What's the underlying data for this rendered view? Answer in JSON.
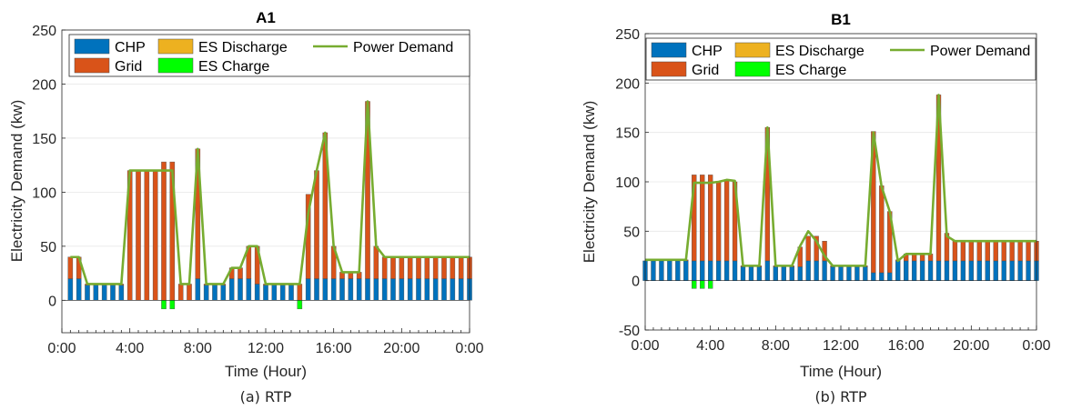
{
  "colors": {
    "chp": "#0072BD",
    "grid": "#D95319",
    "es_discharge": "#EDB120",
    "es_charge": "#00FF00",
    "power_demand": "#77AC30"
  },
  "chart_data": [
    {
      "type": "bar",
      "title": "A1",
      "caption": "(a) RTP",
      "xlabel": "Time (Hour)",
      "ylabel": "Electricity Demand (kw)",
      "ylim": [
        -30,
        250
      ],
      "yticks": [
        0,
        50,
        100,
        150,
        200,
        250
      ],
      "ytick_labels": [
        "0",
        "50",
        "100",
        "150",
        "200",
        "250"
      ],
      "xticks": [
        0,
        4,
        8,
        12,
        16,
        20,
        24
      ],
      "xtick_labels": [
        "0:00",
        "4:00",
        "8:00",
        "12:00",
        "16:00",
        "20:00",
        "0:00"
      ],
      "grid": true,
      "legend_position": "top",
      "legend": [
        "CHP",
        "Grid",
        "ES Discharge",
        "ES Charge",
        "Power Demand"
      ],
      "x": [
        0.5,
        1,
        1.5,
        2,
        2.5,
        3,
        3.5,
        4,
        4.5,
        5,
        5.5,
        6,
        6.5,
        7,
        7.5,
        8,
        8.5,
        9,
        9.5,
        10,
        10.5,
        11,
        11.5,
        12,
        12.5,
        13,
        13.5,
        14,
        14.5,
        15,
        15.5,
        16,
        16.5,
        17,
        17.5,
        18,
        18.5,
        19,
        19.5,
        20,
        20.5,
        21,
        21.5,
        22,
        22.5,
        23,
        23.5,
        24
      ],
      "series": [
        {
          "name": "CHP",
          "values": [
            20,
            20,
            14,
            14,
            14,
            14,
            14,
            0,
            0,
            0,
            0,
            0,
            0,
            0,
            0,
            20,
            14,
            14,
            14,
            20,
            20,
            20,
            15,
            14,
            14,
            14,
            14,
            0,
            20,
            20,
            20,
            20,
            20,
            20,
            20,
            20,
            20,
            20,
            20,
            20,
            20,
            20,
            20,
            20,
            20,
            20,
            20,
            20
          ]
        },
        {
          "name": "Grid",
          "values": [
            20,
            20,
            1,
            1,
            1,
            1,
            1,
            120,
            120,
            120,
            120,
            128,
            128,
            15,
            15,
            120,
            1,
            1,
            1,
            10,
            10,
            30,
            35,
            1,
            1,
            1,
            1,
            15,
            78,
            100,
            135,
            30,
            6,
            6,
            6,
            164,
            30,
            20,
            20,
            20,
            20,
            20,
            20,
            20,
            20,
            20,
            20,
            20
          ]
        },
        {
          "name": "ES Discharge",
          "values": [
            0,
            0,
            0,
            0,
            0,
            0,
            0,
            0,
            0,
            0,
            0,
            0,
            0,
            0,
            0,
            0,
            0,
            0,
            0,
            0,
            0,
            0,
            0,
            0,
            0,
            0,
            0,
            0,
            0,
            0,
            0,
            0,
            0,
            0,
            0,
            0,
            0,
            0,
            0,
            0,
            0,
            0,
            0,
            0,
            0,
            0,
            0,
            0
          ]
        },
        {
          "name": "ES Charge",
          "values": [
            0,
            0,
            0,
            0,
            0,
            0,
            0,
            0,
            0,
            0,
            0,
            -8,
            -8,
            0,
            0,
            0,
            0,
            0,
            0,
            0,
            0,
            0,
            0,
            0,
            0,
            0,
            0,
            -8,
            0,
            0,
            0,
            0,
            0,
            0,
            0,
            0,
            0,
            0,
            0,
            0,
            0,
            0,
            0,
            0,
            0,
            0,
            0,
            0
          ]
        }
      ],
      "demand": {
        "name": "Power Demand",
        "x": [
          0.5,
          1,
          1.5,
          2,
          2.5,
          3,
          3.5,
          4,
          4.5,
          5,
          5.5,
          6,
          6.5,
          7,
          7.5,
          8,
          8.5,
          9,
          9.5,
          10,
          10.5,
          11,
          11.5,
          12,
          12.5,
          13,
          13.5,
          14,
          14.5,
          15,
          15.5,
          16,
          16.5,
          17,
          17.5,
          18,
          18.5,
          19,
          19.5,
          20,
          20.5,
          21,
          21.5,
          22,
          22.5,
          23,
          23.5,
          24
        ],
        "values": [
          40,
          40,
          15,
          15,
          15,
          15,
          15,
          120,
          120,
          120,
          120,
          120,
          120,
          15,
          15,
          140,
          15,
          15,
          15,
          30,
          30,
          50,
          50,
          15,
          15,
          15,
          15,
          15,
          80,
          120,
          155,
          50,
          26,
          26,
          26,
          184,
          50,
          40,
          40,
          40,
          40,
          40,
          40,
          40,
          40,
          40,
          40,
          40
        ]
      }
    },
    {
      "type": "bar",
      "title": "B1",
      "caption": "(b) RTP",
      "xlabel": "Time (Hour)",
      "ylabel": "Electricity Demand (kw)",
      "ylim": [
        -50,
        250
      ],
      "yticks": [
        -50,
        0,
        50,
        100,
        150,
        200,
        250
      ],
      "ytick_labels": [
        "-50",
        "0",
        "50",
        "100",
        "150",
        "200",
        "250"
      ],
      "xticks": [
        0,
        4,
        8,
        12,
        16,
        20,
        24
      ],
      "xtick_labels": [
        "0:00",
        "4:00",
        "8:00",
        "12:00",
        "16:00",
        "20:00",
        "0:00"
      ],
      "grid": true,
      "legend_position": "top",
      "legend": [
        "CHP",
        "Grid",
        "ES Discharge",
        "ES Charge",
        "Power Demand"
      ],
      "x": [
        0,
        0.5,
        1,
        1.5,
        2,
        2.5,
        3,
        3.5,
        4,
        4.5,
        5,
        5.5,
        6,
        6.5,
        7,
        7.5,
        8,
        8.5,
        9,
        9.5,
        10,
        10.5,
        11,
        11.5,
        12,
        12.5,
        13,
        13.5,
        14,
        14.5,
        15,
        15.5,
        16,
        16.5,
        17,
        17.5,
        18,
        18.5,
        19,
        19.5,
        20,
        20.5,
        21,
        21.5,
        22,
        22.5,
        23,
        23.5,
        24
      ],
      "series": [
        {
          "name": "CHP",
          "values": [
            20,
            20,
            20,
            20,
            20,
            20,
            20,
            20,
            20,
            20,
            20,
            20,
            14,
            14,
            14,
            20,
            14,
            14,
            14,
            14,
            20,
            20,
            20,
            14,
            14,
            14,
            14,
            14,
            8,
            8,
            8,
            20,
            20,
            20,
            20,
            20,
            20,
            20,
            20,
            20,
            20,
            20,
            20,
            20,
            20,
            20,
            20,
            20,
            20
          ]
        },
        {
          "name": "Grid",
          "values": [
            0,
            1,
            1,
            1,
            1,
            1,
            87,
            87,
            87,
            80,
            82,
            80,
            1,
            1,
            1,
            135,
            1,
            1,
            1,
            20,
            25,
            25,
            20,
            1,
            1,
            1,
            1,
            1,
            143,
            88,
            62,
            1,
            7,
            7,
            7,
            7,
            168,
            28,
            20,
            20,
            20,
            20,
            20,
            20,
            20,
            20,
            20,
            20,
            20
          ]
        },
        {
          "name": "ES Discharge",
          "values": [
            0,
            0,
            0,
            0,
            0,
            0,
            0,
            0,
            0,
            0,
            0,
            0,
            0,
            0,
            0,
            0,
            0,
            0,
            0,
            0,
            0,
            0,
            0,
            0,
            0,
            0,
            0,
            0,
            0,
            0,
            0,
            0,
            0,
            0,
            0,
            0,
            0,
            0,
            0,
            0,
            0,
            0,
            0,
            0,
            0,
            0,
            0,
            0,
            0
          ]
        },
        {
          "name": "ES Charge",
          "values": [
            0,
            0,
            0,
            0,
            0,
            0,
            -8,
            -8,
            -8,
            0,
            0,
            0,
            0,
            0,
            0,
            0,
            0,
            0,
            0,
            0,
            0,
            0,
            0,
            0,
            0,
            0,
            0,
            0,
            0,
            0,
            0,
            0,
            0,
            0,
            0,
            0,
            0,
            0,
            0,
            0,
            0,
            0,
            0,
            0,
            0,
            0,
            0,
            0,
            0
          ]
        }
      ],
      "demand": {
        "name": "Power Demand",
        "x": [
          0,
          0.5,
          1,
          1.5,
          2,
          2.5,
          3,
          3.5,
          4,
          4.5,
          5,
          5.5,
          6,
          6.5,
          7,
          7.5,
          8,
          8.5,
          9,
          9.5,
          10,
          10.5,
          11,
          11.5,
          12,
          12.5,
          13,
          13.5,
          14,
          14.5,
          15,
          15.5,
          16,
          16.5,
          17,
          17.5,
          18,
          18.5,
          19,
          19.5,
          20,
          20.5,
          21,
          21.5,
          22,
          22.5,
          23,
          23.5,
          24
        ],
        "values": [
          21,
          21,
          21,
          21,
          21,
          21,
          99,
          99,
          99,
          100,
          102,
          101,
          15,
          15,
          15,
          155,
          15,
          15,
          15,
          35,
          50,
          40,
          25,
          15,
          15,
          15,
          15,
          15,
          150,
          95,
          70,
          20,
          27,
          27,
          27,
          27,
          188,
          45,
          40,
          40,
          40,
          40,
          40,
          40,
          40,
          40,
          40,
          40,
          40
        ]
      }
    }
  ]
}
